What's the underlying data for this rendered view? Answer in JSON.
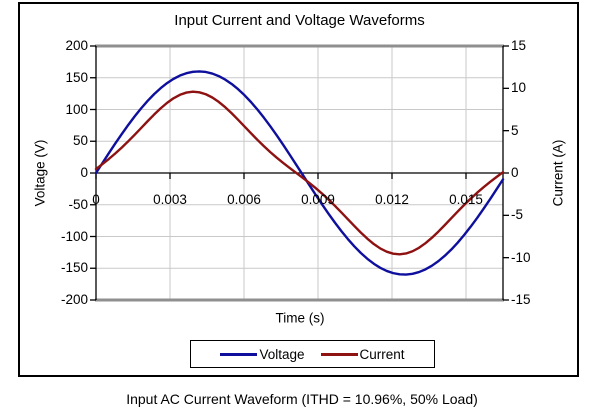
{
  "chart": {
    "title": "Input Current and Voltage Waveforms",
    "x_axis": {
      "title": "Time (s)",
      "tick_labels": [
        "0",
        "0.003",
        "0.006",
        "0.009",
        "0.012",
        "0.015"
      ],
      "tick_values_s": [
        0,
        0.003,
        0.006,
        0.009,
        0.012,
        0.015
      ]
    },
    "y_left": {
      "title": "Voltage (V)",
      "tick_labels": [
        "200",
        "150",
        "100",
        "50",
        "0",
        "-50",
        "-100",
        "-150",
        "-200"
      ],
      "min": -200,
      "max": 200
    },
    "y_right": {
      "title": "Current (A)",
      "tick_labels": [
        "15",
        "10",
        "5",
        "0",
        "-5",
        "-10",
        "-15"
      ],
      "min": -15,
      "max": 15
    },
    "colors": {
      "gridline": "#c9c9c9",
      "plot_boundary": "#8f8f8f",
      "axis": "#000000"
    }
  },
  "caption": "Input AC Current Waveform (ITHD = 10.96%, 50% Load)",
  "chart_data": {
    "type": "line",
    "title": "Input Current and Voltage Waveforms",
    "xlabel": "Time (s)",
    "ylabel_left": "Voltage (V)",
    "ylabel_right": "Current (A)",
    "x_range_s": [
      0,
      0.0165
    ],
    "left_ylim": [
      -200,
      200
    ],
    "right_ylim": [
      -15,
      15
    ],
    "grid": true,
    "legend_position": "bottom",
    "samples_per_cycle": 64,
    "series": [
      {
        "name": "Voltage",
        "axis": "left",
        "unit": "V",
        "waveform": "sine",
        "amplitude": 160,
        "frequency_hz": 60,
        "phase_rad": 0,
        "harmonic3_ratio": 0,
        "color": "#0f0f9e"
      },
      {
        "name": "Current",
        "axis": "right",
        "unit": "A",
        "waveform": "distorted-sine",
        "amplitude": 9.6,
        "frequency_hz": 60,
        "phase_rad": 0.08,
        "harmonic3_ratio": 0.11,
        "color": "#8e1212",
        "ithd_pct": 10.96,
        "load_pct": 50
      }
    ],
    "sampled_points": {
      "t_ms": [
        0,
        1,
        2,
        3,
        4,
        5,
        6,
        7,
        8,
        9,
        10,
        11,
        12,
        13,
        14,
        15,
        16
      ],
      "voltage_v": [
        0,
        58.9,
        109.5,
        144.8,
        159.7,
        152.2,
        123.3,
        77.1,
        20,
        -39.8,
        -94,
        -135.1,
        -157.2,
        -157.2,
        -135.1,
        -94,
        -39.8
      ],
      "current_a": [
        0.5,
        2.9,
        5.8,
        8.5,
        9.6,
        8.4,
        5.6,
        2.7,
        0.3,
        -2,
        -4.8,
        -7.8,
        -9.5,
        -9,
        -6.6,
        -3.5,
        -1
      ]
    }
  }
}
